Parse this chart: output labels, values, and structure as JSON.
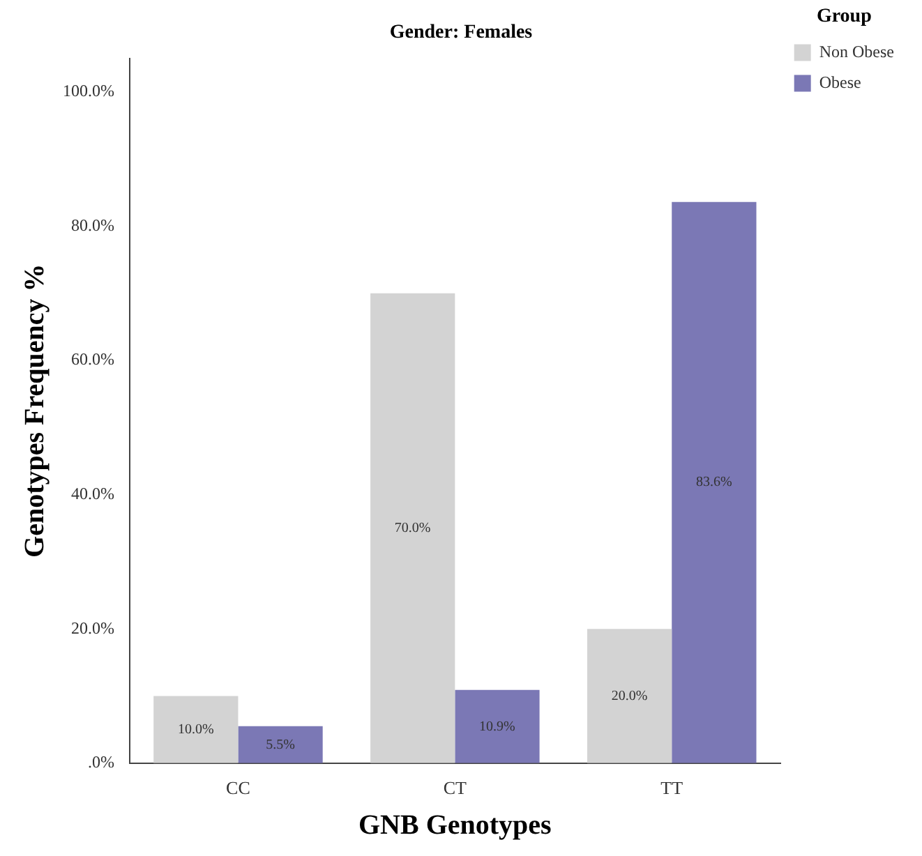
{
  "chart_data": {
    "type": "bar",
    "title": "Gender: Females",
    "xlabel": "GNB Genotypes",
    "ylabel": "Genotypes Frequency %",
    "legend_title": "Group",
    "categories": [
      "CC",
      "CT",
      "TT"
    ],
    "series": [
      {
        "name": "Non Obese",
        "color": "#d3d3d3",
        "values": [
          10.0,
          70.0,
          20.0
        ],
        "value_labels": [
          "10.0%",
          "70.0%",
          "20.0%"
        ]
      },
      {
        "name": "Obese",
        "color": "#7b78b5",
        "values": [
          5.5,
          10.9,
          83.6
        ],
        "value_labels": [
          "5.5%",
          "10.9%",
          "83.6%"
        ]
      }
    ],
    "ylim": [
      0,
      105
    ],
    "yticks": [
      {
        "value": 0,
        "label": ".0%"
      },
      {
        "value": 20,
        "label": "20.0%"
      },
      {
        "value": 40,
        "label": "40.0%"
      },
      {
        "value": 60,
        "label": "60.0%"
      },
      {
        "value": 80,
        "label": "80.0%"
      },
      {
        "value": 100,
        "label": "100.0%"
      }
    ],
    "grid": false,
    "legend": "top right"
  }
}
